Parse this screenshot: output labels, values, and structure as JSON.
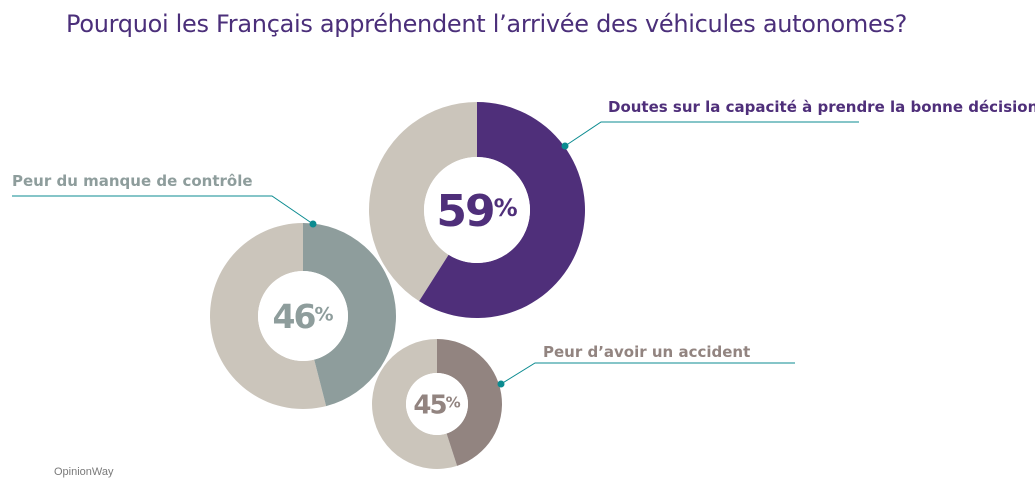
{
  "chart_data": {
    "type": "donut",
    "title": "Pourquoi les Français appréhendent l’arrivée des véhicules autonomes?",
    "categories": [
      "Doutes sur la capacité à prendre la bonne décision",
      "Peur du manque de contrôle",
      "Peur d’avoir un accident"
    ],
    "values": [
      59,
      46,
      45
    ],
    "value_labels": [
      "59",
      "46",
      "45"
    ],
    "unit": "%",
    "colors": [
      "#4f2f7a",
      "#8e9d9c",
      "#928480"
    ],
    "remainder_color": "#cbc5bb",
    "leader_color": "#0b8b90"
  },
  "source": "OpinionWay"
}
